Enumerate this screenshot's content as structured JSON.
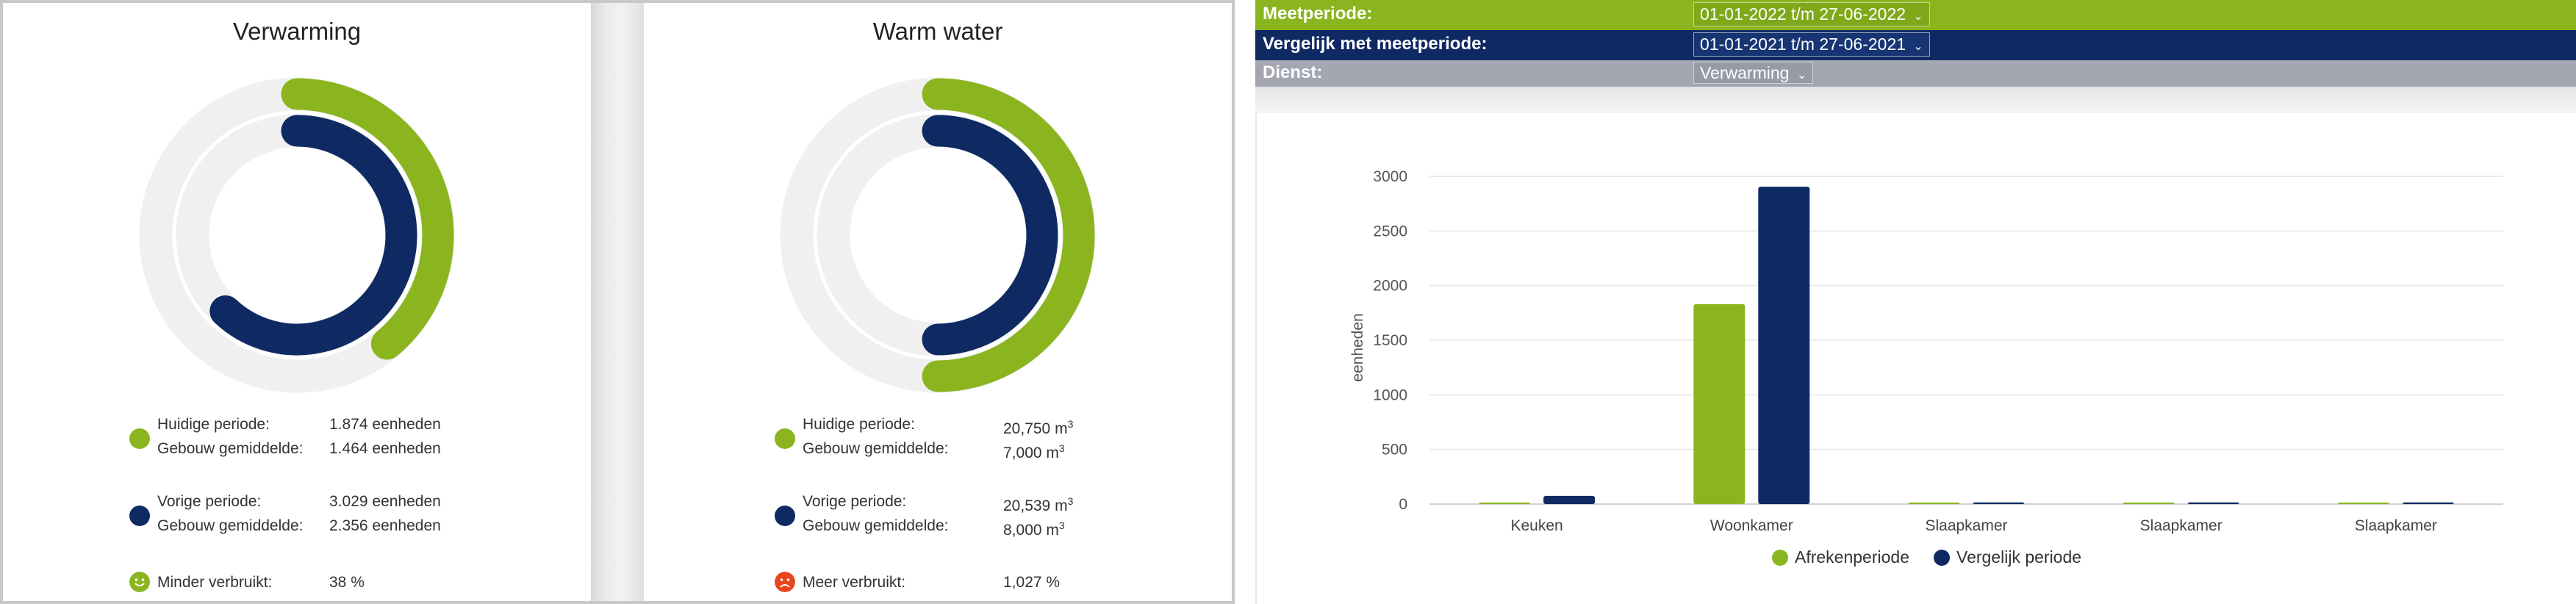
{
  "cards": [
    {
      "title": "Verwarming",
      "outer_ring_color": "#8ab51e",
      "inner_ring_color": "#0f2a63",
      "outer_fraction": 0.39,
      "inner_fraction": 0.62,
      "current": {
        "label1": "Huidige periode:",
        "value1": "1.874 eenheden",
        "label2": "Gebouw gemiddelde:",
        "value2": "1.464 eenheden",
        "color": "#8ab51e"
      },
      "previous": {
        "label1": "Vorige periode:",
        "value1": "3.029 eenheden",
        "label2": "Gebouw gemiddelde:",
        "value2": "2.356 eenheden",
        "color": "#0f2a63"
      },
      "result": {
        "label": "Minder verbruikt:",
        "value": "38 %",
        "face": "smiley-happy-icon",
        "color": "#8ab51e"
      }
    },
    {
      "title": "Warm water",
      "outer_ring_color": "#8ab51e",
      "inner_ring_color": "#0f2a63",
      "outer_fraction": 0.5,
      "inner_fraction": 0.5,
      "current": {
        "label1": "Huidige periode:",
        "value1": "20,750 m",
        "label2": "Gebouw gemiddelde:",
        "value2": "7,000 m",
        "color": "#8ab51e"
      },
      "previous": {
        "label1": "Vorige periode:",
        "value1": "20,539 m",
        "label2": "Gebouw gemiddelde:",
        "value2": "8,000 m",
        "color": "#0f2a63"
      },
      "unit_sup": "3",
      "result": {
        "label": "Meer verbruikt:",
        "value": "1,027 %",
        "face": "smiley-sad-icon",
        "color": "#e8461e"
      }
    }
  ],
  "filters": {
    "meetperiode": {
      "label": "Meetperiode:",
      "value": "01-01-2022 t/m 27-06-2022"
    },
    "vergelijk": {
      "label": "Vergelijk met meetperiode:",
      "value": "01-01-2021 t/m 27-06-2021"
    },
    "dienst": {
      "label": "Dienst:",
      "value": "Verwarming"
    }
  },
  "chart_data": {
    "type": "bar",
    "categories": [
      "Keuken",
      "Woonkamer",
      "Slaapkamer",
      "Slaapkamer",
      "Slaapkamer"
    ],
    "series": [
      {
        "name": "Afrekenperiode",
        "color": "#8ab51e",
        "values": [
          10,
          1830,
          10,
          10,
          10
        ]
      },
      {
        "name": "Vergelijk periode",
        "color": "#0f2a63",
        "values": [
          75,
          2905,
          15,
          15,
          15
        ]
      }
    ],
    "ylabel": "eenheden",
    "yticks": [
      0,
      500,
      1000,
      1500,
      2000,
      2500,
      3000
    ],
    "ylim": [
      0,
      3000
    ],
    "grid": true,
    "legend_position": "bottom-center"
  }
}
